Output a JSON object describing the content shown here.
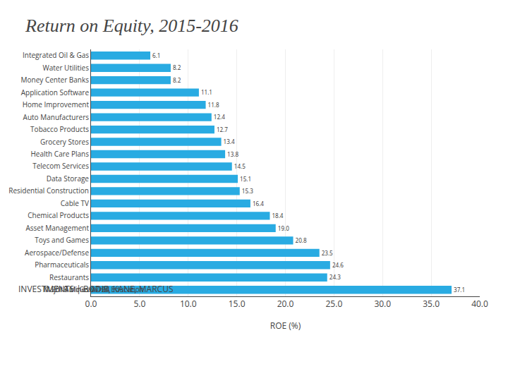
{
  "chart_data": {
    "type": "bar",
    "orientation": "horizontal",
    "title": "Return on Equity, 2015-2016",
    "categories": [
      "Major Airlines",
      "Restaurants",
      "Pharmaceuticals",
      "Aerospace/Defense",
      "Toys and Games",
      "Asset Management",
      "Chemical Products",
      "Cable TV",
      "Residential Construction",
      "Data Storage",
      "Telecom Services",
      "Health Care Plans",
      "Grocery Stores",
      "Tobacco Products",
      "Auto Manufacturers",
      "Home Improvement",
      "Application Software",
      "Money Center Banks",
      "Water Utilities",
      "Integrated Oil & Gas"
    ],
    "values": [
      37.1,
      24.3,
      24.6,
      23.5,
      20.8,
      19.0,
      18.4,
      16.4,
      15.3,
      15.1,
      14.5,
      13.8,
      13.4,
      12.7,
      12.4,
      11.8,
      11.1,
      8.2,
      8.2,
      6.1
    ],
    "value_labels": [
      "37.1",
      "24.3",
      "24.6",
      "23.5",
      "20.8",
      "19.0",
      "18.4",
      "16.4",
      "15.3",
      "15.1",
      "14.5",
      "13.8",
      "13.4",
      "12.7",
      "12.4",
      "11.8",
      "11.1",
      "8.2",
      "8.2",
      "6.1"
    ],
    "color": "#29ABE2",
    "xlabel": "ROE (%)",
    "xlim": [
      0,
      40
    ],
    "xticks": [
      {
        "value": 0,
        "label": "0.0"
      },
      {
        "value": 5,
        "label": "5.0"
      },
      {
        "value": 10,
        "label": "10.0"
      },
      {
        "value": 15,
        "label": "15.0"
      },
      {
        "value": 20,
        "label": "20.0"
      },
      {
        "value": 25,
        "label": "25.0"
      },
      {
        "value": 30,
        "label": "30.0"
      },
      {
        "value": 35,
        "label": "35.0"
      },
      {
        "value": 40,
        "label": "40.0"
      }
    ],
    "grid": true,
    "data_labels": true,
    "annotations": [
      "INVESTMENTS | BODIE, KANE, MARCUS",
      "© 2018 McGraw-Hill Education",
      "17-24"
    ]
  }
}
